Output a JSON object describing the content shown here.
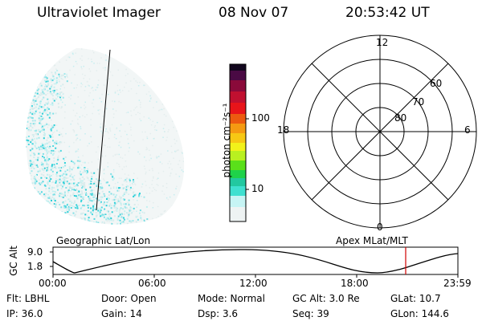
{
  "header": {
    "instrument": "Ultraviolet Imager",
    "date": "08 Nov 07",
    "time": "20:53:42 UT"
  },
  "colorbar": {
    "unit_label": "photon cm⁻²s⁻¹",
    "ticks": [
      "100",
      "10"
    ]
  },
  "polar": {
    "hour_labels": {
      "top": "12",
      "bottom": "0",
      "left": "18",
      "right": "6"
    },
    "lat_labels": [
      "60",
      "70",
      "80"
    ]
  },
  "altitude_plot": {
    "left_title": "Geographic Lat/Lon",
    "right_title": "Apex MLat/MLT",
    "y_axis_label": "GC Alt",
    "y_ticks": [
      "9.0",
      "1.8"
    ],
    "x_ticks": [
      "00:00",
      "06:00",
      "12:00",
      "18:00",
      "23:59"
    ],
    "marker_color": "#d00000"
  },
  "status": {
    "flt": "Flt:  LBHL",
    "ip": "IP:  36.0",
    "door": "Door:  Open",
    "gain": "Gain:  14",
    "mode": "Mode:  Normal",
    "dsp": "Dsp:       3.6",
    "gc_alt": "GC Alt:  3.0 Re",
    "seq": "Seq:  39",
    "glat": "GLat:    10.7",
    "glon": "GLon:  144.6"
  }
}
